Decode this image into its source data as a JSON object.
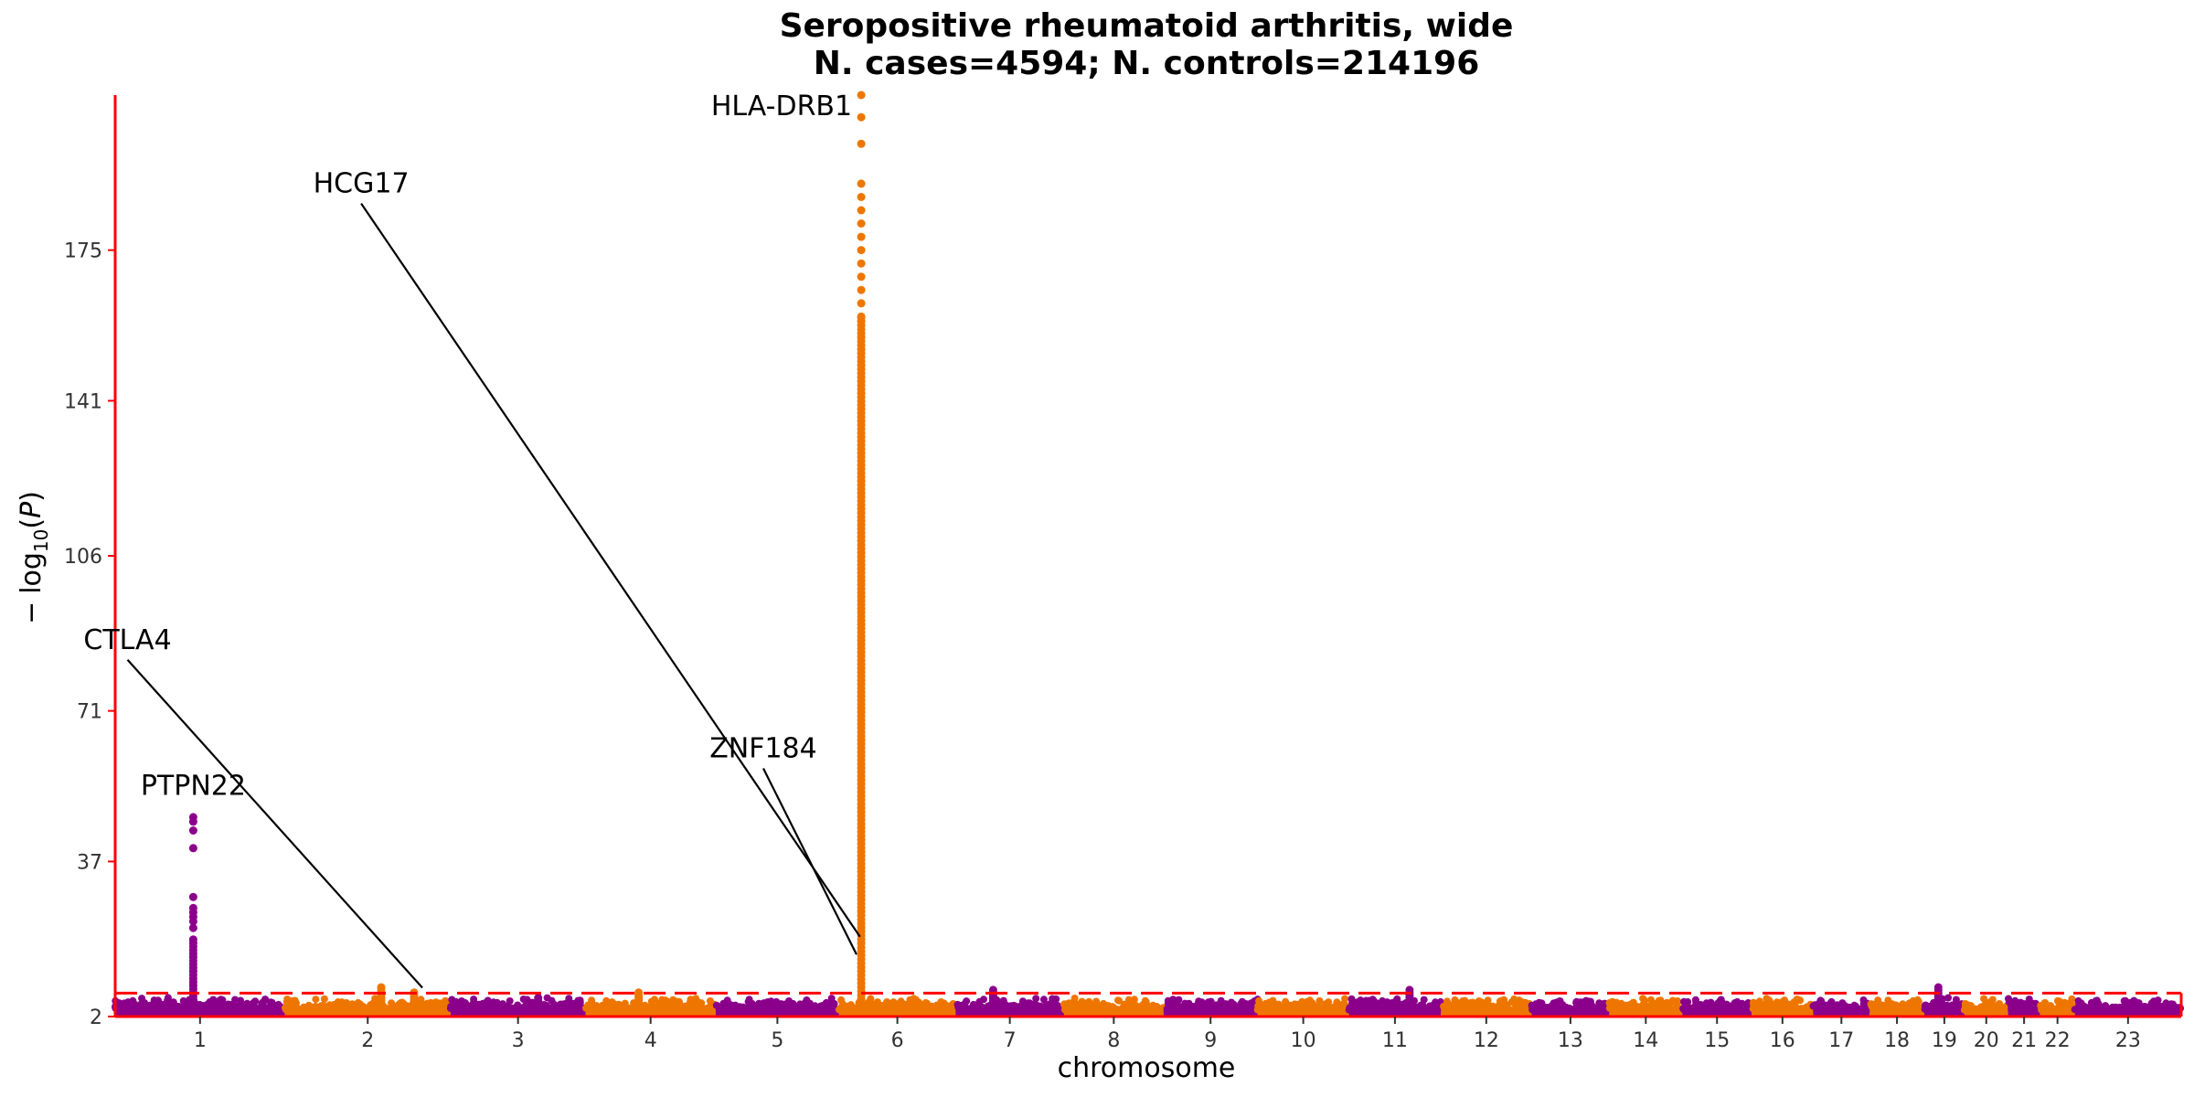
{
  "chart_data": {
    "type": "scatter",
    "title": "Seropositive rheumatoid arthritis, wide",
    "subtitle": "N. cases=4594; N. controls=214196",
    "xlabel": "chromosome",
    "ylabel": "− log10(P)",
    "ylabel_parts": {
      "minus": "−",
      "log": "log",
      "sub": "10",
      "p": "P"
    },
    "ylim": [
      2,
      210
    ],
    "yticks": [
      2,
      37,
      71,
      106,
      141,
      175
    ],
    "significance_threshold": 7.3,
    "series_colors": [
      "#8b008b",
      "#ee7600"
    ],
    "threshold_color": "#ff0000",
    "axis_color": "#ff0000",
    "chromosomes": [
      {
        "label": "1",
        "length": 249,
        "peak": 47
      },
      {
        "label": "2",
        "length": 243,
        "peak": 9
      },
      {
        "label": "3",
        "length": 198,
        "peak": 6.5
      },
      {
        "label": "4",
        "length": 191,
        "peak": 7.5
      },
      {
        "label": "5",
        "length": 181,
        "peak": 6
      },
      {
        "label": "6",
        "length": 171,
        "peak": 215
      },
      {
        "label": "7",
        "length": 159,
        "peak": 8
      },
      {
        "label": "8",
        "length": 146,
        "peak": 6
      },
      {
        "label": "9",
        "length": 138,
        "peak": 5.5
      },
      {
        "label": "10",
        "length": 134,
        "peak": 6
      },
      {
        "label": "11",
        "length": 135,
        "peak": 8
      },
      {
        "label": "12",
        "length": 133,
        "peak": 6
      },
      {
        "label": "13",
        "length": 114,
        "peak": 5
      },
      {
        "label": "14",
        "length": 107,
        "peak": 5.5
      },
      {
        "label": "15",
        "length": 102,
        "peak": 5.5
      },
      {
        "label": "16",
        "length": 90,
        "peak": 5.5
      },
      {
        "label": "17",
        "length": 83,
        "peak": 5.5
      },
      {
        "label": "18",
        "length": 80,
        "peak": 5.5
      },
      {
        "label": "19",
        "length": 59,
        "peak": 9
      },
      {
        "label": "20",
        "length": 64,
        "peak": 5.5
      },
      {
        "label": "21",
        "length": 47,
        "peak": 5
      },
      {
        "label": "22",
        "length": 51,
        "peak": 6
      },
      {
        "label": "23",
        "length": 156,
        "peak": 5.5
      }
    ],
    "annotations": [
      {
        "gene": "PTPN22",
        "chrom": "1",
        "pos": 0.46,
        "y": 47,
        "label_x": 0.46,
        "label_y": 52,
        "leader": false
      },
      {
        "gene": "CTLA4",
        "chrom": "2",
        "pos": 0.83,
        "y": 8.5,
        "label_x": -0.95,
        "label_y": 85,
        "leader": true
      },
      {
        "gene": "ZNF184",
        "chrom": "6",
        "pos": 0.15,
        "y": 16,
        "label_x": -0.65,
        "label_y": 60.5,
        "leader": true
      },
      {
        "gene": "HCG17",
        "chrom": "6",
        "pos": 0.18,
        "y": 20,
        "label_x": -4.1,
        "label_y": 188,
        "leader": true
      },
      {
        "gene": "HLA-DRB1",
        "chrom": "6",
        "pos": 0.19,
        "y": 211,
        "label_x": 0.1,
        "label_y": 205.5,
        "leader": false
      }
    ]
  }
}
